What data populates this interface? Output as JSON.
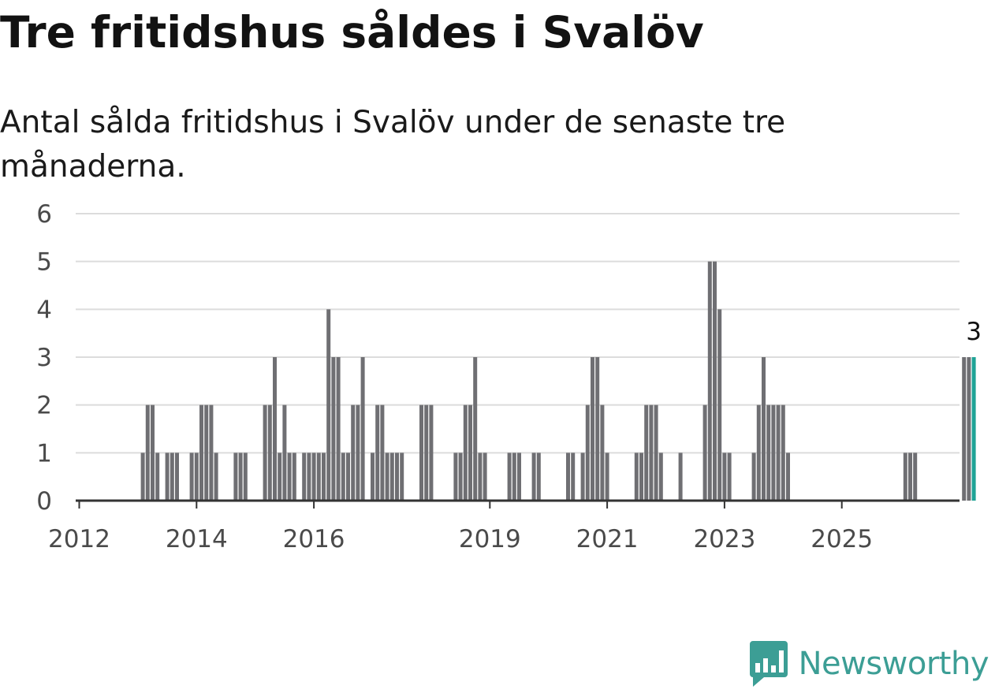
{
  "title": "Tre fritidshus såldes i Svalöv",
  "subtitle": "Antal sålda fritidshus i Svalöv under de senaste tre månaderna.",
  "brand": {
    "name": "Newsworthy",
    "logo_icon": "bar-chart-speech-bubble-icon"
  },
  "colors": {
    "bar": "#6f6f73",
    "highlight": "#1fa396",
    "grid": "#dcdcdc",
    "axis": "#333333",
    "brand": "#3c9e95"
  },
  "chart_data": {
    "type": "bar",
    "title": "Tre fritidshus såldes i Svalöv",
    "subtitle": "Antal sålda fritidshus i Svalöv under de senaste tre månaderna.",
    "xlabel": "",
    "ylabel": "",
    "ylim": [
      0,
      6
    ],
    "yticks": [
      0,
      1,
      2,
      3,
      4,
      5,
      6
    ],
    "grid": true,
    "x_tick_labels": [
      "2012",
      "2014",
      "2016",
      "2019",
      "2021",
      "2023",
      "2025"
    ],
    "x_tick_months": [
      "2012-01",
      "2014-01",
      "2016-01",
      "2019-01",
      "2021-01",
      "2023-01",
      "2025-01"
    ],
    "start_month": "2011-01",
    "values": [
      0,
      0,
      0,
      0,
      0,
      0,
      0,
      0,
      0,
      0,
      0,
      0,
      0,
      0,
      0,
      0,
      0,
      0,
      0,
      0,
      0,
      0,
      0,
      0,
      0,
      1,
      2,
      2,
      1,
      0,
      1,
      1,
      1,
      0,
      0,
      1,
      1,
      2,
      2,
      2,
      1,
      0,
      0,
      0,
      1,
      1,
      1,
      0,
      0,
      0,
      2,
      2,
      3,
      1,
      2,
      1,
      1,
      0,
      1,
      1,
      1,
      1,
      1,
      4,
      3,
      3,
      1,
      1,
      2,
      2,
      3,
      0,
      1,
      2,
      2,
      1,
      1,
      1,
      1,
      0,
      0,
      0,
      2,
      2,
      2,
      0,
      0,
      0,
      0,
      1,
      1,
      2,
      2,
      3,
      1,
      1,
      0,
      0,
      0,
      0,
      1,
      1,
      1,
      0,
      0,
      1,
      1,
      0,
      0,
      0,
      0,
      0,
      1,
      1,
      0,
      1,
      2,
      3,
      3,
      2,
      1,
      0,
      0,
      0,
      0,
      0,
      1,
      1,
      2,
      2,
      2,
      1,
      0,
      0,
      0,
      1,
      0,
      0,
      0,
      0,
      2,
      5,
      5,
      4,
      1,
      1,
      0,
      0,
      0,
      0,
      1,
      2,
      3,
      2,
      2,
      2,
      2,
      1,
      0,
      0,
      0,
      0,
      0,
      0,
      0,
      0,
      0,
      0,
      0,
      0,
      0,
      0,
      0,
      0,
      0,
      0,
      0,
      0,
      0,
      0,
      0,
      1,
      1,
      1,
      0,
      0,
      0,
      0,
      0,
      0,
      0,
      0,
      0,
      3,
      3,
      3
    ],
    "highlight_last": true,
    "annotation": {
      "text": "3",
      "target": "last"
    }
  }
}
